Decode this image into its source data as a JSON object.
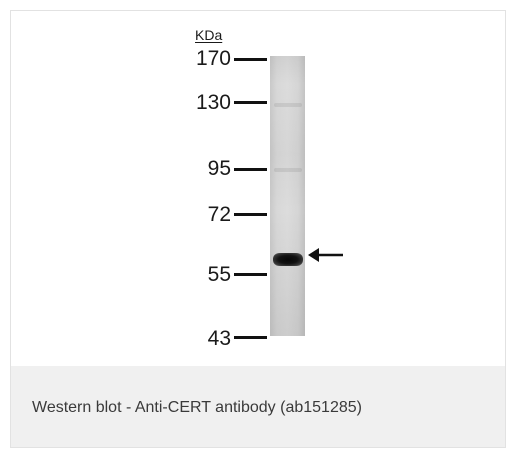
{
  "blot": {
    "unit_label": "KDa",
    "markers": [
      {
        "label": "170",
        "kda": 170
      },
      {
        "label": "130",
        "kda": 130
      },
      {
        "label": "95",
        "kda": 95
      },
      {
        "label": "72",
        "kda": 72
      },
      {
        "label": "55",
        "kda": 55
      },
      {
        "label": "43",
        "kda": 43
      }
    ],
    "detected_band_kda": 63,
    "icons": {
      "band_pointer": "left-arrow-icon"
    }
  },
  "caption": {
    "text": "Western blot - Anti-CERT antibody (ab151285)"
  }
}
